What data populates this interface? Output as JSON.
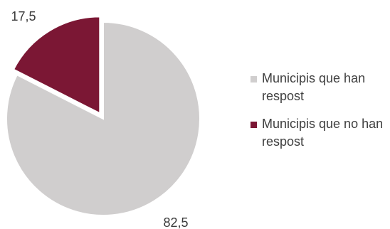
{
  "chart_data": {
    "type": "pie",
    "title": "",
    "series": [
      {
        "name": "Municipis que han respost",
        "value": 82.5,
        "label": "82,5",
        "color": "#d0cece"
      },
      {
        "name": "Municipis que no han respost",
        "value": 17.5,
        "label": "17,5",
        "color": "#7b1734"
      }
    ],
    "exploded": "Municipis que no han respost",
    "legend": {
      "position": "right",
      "items": [
        {
          "label": "Municipis que han respost",
          "color": "#d0cece"
        },
        {
          "label": "Municipis que no han respost",
          "color": "#7b1734"
        }
      ]
    }
  }
}
